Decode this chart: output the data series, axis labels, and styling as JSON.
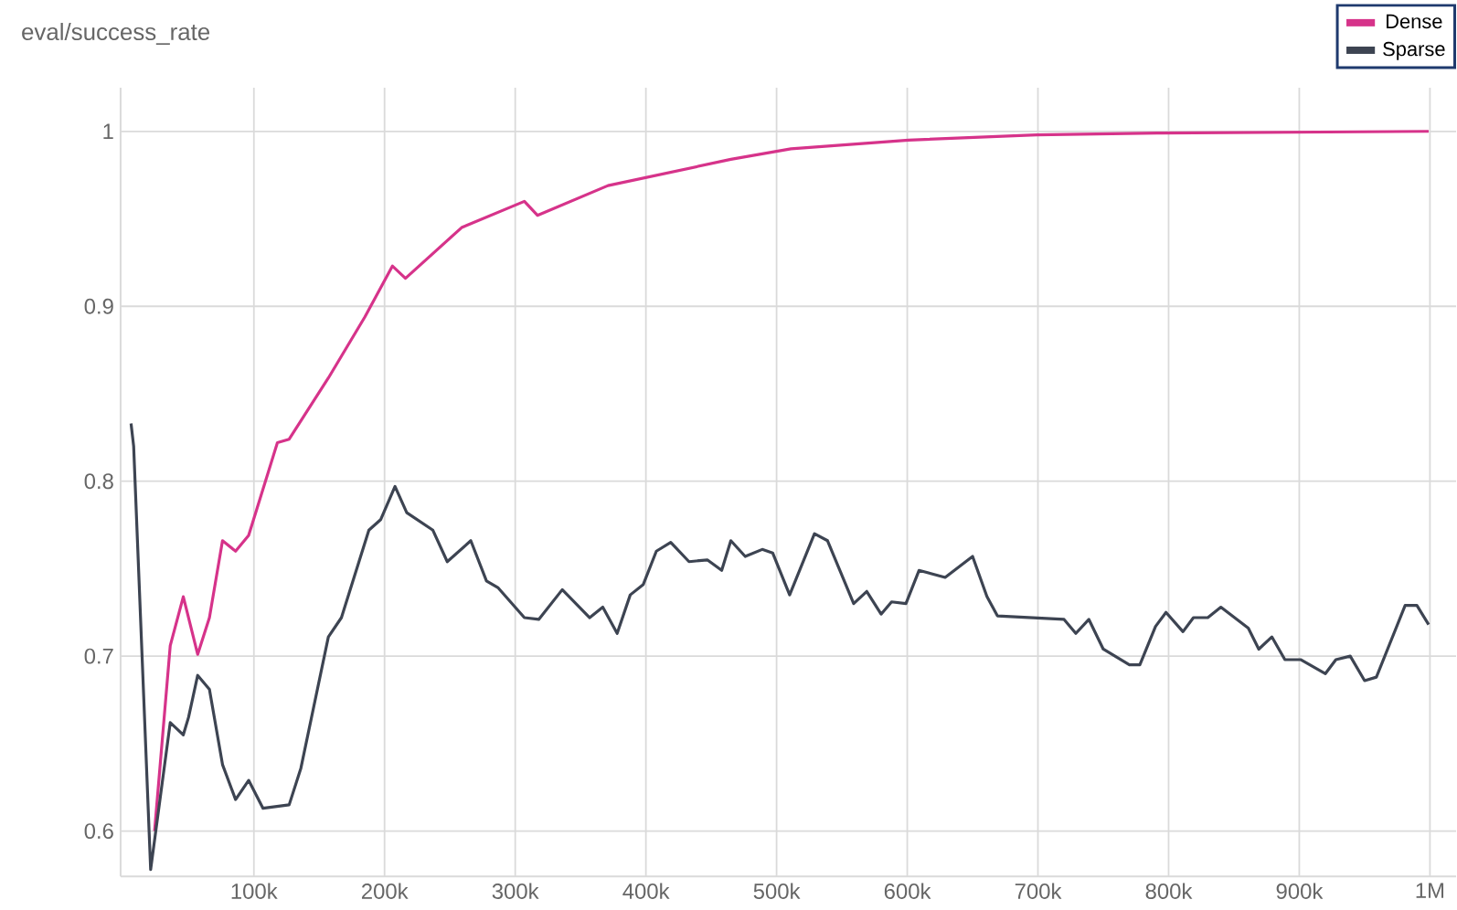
{
  "chart_data": {
    "type": "line",
    "title": "eval/success_rate",
    "xlim": [
      -2000,
      1020000
    ],
    "ylim": [
      0.574,
      1.025
    ],
    "xticks": [
      {
        "value": 100000,
        "label": "100k"
      },
      {
        "value": 200000,
        "label": "200k"
      },
      {
        "value": 300000,
        "label": "300k"
      },
      {
        "value": 400000,
        "label": "400k"
      },
      {
        "value": 500000,
        "label": "500k"
      },
      {
        "value": 600000,
        "label": "600k"
      },
      {
        "value": 700000,
        "label": "700k"
      },
      {
        "value": 800000,
        "label": "800k"
      },
      {
        "value": 900000,
        "label": "900k"
      },
      {
        "value": 1000000,
        "label": "1M"
      }
    ],
    "yticks": [
      0.6,
      0.7,
      0.8,
      0.9,
      1
    ],
    "grid": true,
    "legend": "top right",
    "marker": "none",
    "line_style": "solid",
    "series": [
      {
        "name": "Dense",
        "color": "#d6338a",
        "x": [
          24000,
          36000,
          46000,
          57000,
          66000,
          76000,
          86000,
          96000,
          118000,
          127000,
          157000,
          185000,
          206000,
          216000,
          259000,
          307000,
          317000,
          371000,
          465000,
          511000,
          601000,
          699000,
          791000,
          999000
        ],
        "values": [
          0.6,
          0.706,
          0.734,
          0.701,
          0.722,
          0.766,
          0.76,
          0.769,
          0.822,
          0.824,
          0.859,
          0.894,
          0.923,
          0.916,
          0.945,
          0.96,
          0.952,
          0.969,
          0.984,
          0.99,
          0.995,
          0.998,
          0.999,
          1.0
        ]
      },
      {
        "name": "Sparse",
        "color": "#3d4452",
        "x": [
          6000,
          8000,
          21000,
          36000,
          46000,
          50000,
          57000,
          66000,
          76000,
          86000,
          96000,
          107000,
          127000,
          136000,
          157000,
          167000,
          188000,
          197000,
          208000,
          217000,
          237000,
          248000,
          266000,
          278000,
          287000,
          307000,
          318000,
          336000,
          357000,
          367000,
          378000,
          388000,
          398000,
          408000,
          419000,
          433000,
          447000,
          458000,
          465000,
          476000,
          489000,
          497000,
          510000,
          529000,
          539000,
          559000,
          569000,
          580000,
          588000,
          599000,
          609000,
          629000,
          650000,
          661000,
          669000,
          720000,
          729000,
          739000,
          750000,
          770000,
          778000,
          790000,
          798000,
          811000,
          819000,
          830000,
          840000,
          861000,
          869000,
          879000,
          889000,
          901000,
          920000,
          928000,
          939000,
          950000,
          959000,
          981000,
          990000,
          999000
        ],
        "values": [
          0.833,
          0.82,
          0.578,
          0.662,
          0.655,
          0.665,
          0.689,
          0.681,
          0.638,
          0.618,
          0.629,
          0.613,
          0.615,
          0.636,
          0.711,
          0.722,
          0.772,
          0.778,
          0.797,
          0.782,
          0.772,
          0.754,
          0.766,
          0.743,
          0.739,
          0.722,
          0.721,
          0.738,
          0.722,
          0.728,
          0.713,
          0.735,
          0.741,
          0.76,
          0.765,
          0.754,
          0.755,
          0.749,
          0.766,
          0.757,
          0.761,
          0.759,
          0.735,
          0.77,
          0.766,
          0.73,
          0.737,
          0.724,
          0.731,
          0.73,
          0.749,
          0.745,
          0.757,
          0.734,
          0.723,
          0.721,
          0.713,
          0.721,
          0.704,
          0.695,
          0.695,
          0.717,
          0.725,
          0.714,
          0.722,
          0.722,
          0.728,
          0.716,
          0.704,
          0.711,
          0.698,
          0.698,
          0.69,
          0.698,
          0.7,
          0.686,
          0.688,
          0.729,
          0.729,
          0.718
        ]
      }
    ]
  }
}
